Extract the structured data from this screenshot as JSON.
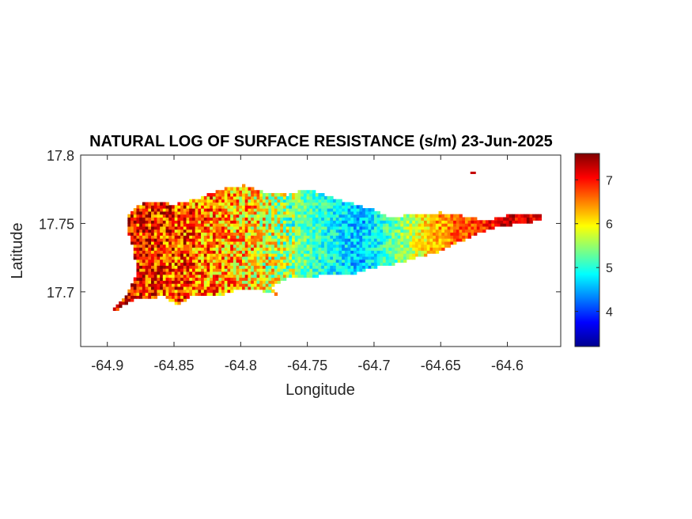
{
  "chart_data": {
    "type": "heatmap",
    "title": "NATURAL LOG OF SURFACE RESISTANCE (s/m) 23-Jun-2025",
    "xlabel": "Longitude",
    "ylabel": "Latitude",
    "xlim": [
      -64.92,
      -64.56
    ],
    "ylim": [
      17.66,
      17.8
    ],
    "xticks": [
      -64.9,
      -64.85,
      -64.8,
      -64.75,
      -64.7,
      -64.65,
      -64.6
    ],
    "xtick_labels": [
      "-64.9",
      "-64.85",
      "-64.8",
      "-64.75",
      "-64.7",
      "-64.65",
      "-64.6"
    ],
    "yticks": [
      17.7,
      17.75,
      17.8
    ],
    "ytick_labels": [
      "17.7",
      "17.75",
      "17.8"
    ],
    "colorbar": {
      "colormap": "jet",
      "clim": [
        3.2,
        7.6
      ],
      "ticks": [
        4,
        5,
        6,
        7
      ],
      "tick_labels": [
        "4",
        "5",
        "6",
        "7"
      ]
    },
    "island_outline": [
      [
        -64.9,
        17.68
      ],
      [
        -64.893,
        17.687
      ],
      [
        -64.882,
        17.694
      ],
      [
        -64.872,
        17.695
      ],
      [
        -64.858,
        17.697
      ],
      [
        -64.847,
        17.69
      ],
      [
        -64.838,
        17.697
      ],
      [
        -64.818,
        17.697
      ],
      [
        -64.8,
        17.702
      ],
      [
        -64.786,
        17.701
      ],
      [
        -64.772,
        17.698
      ],
      [
        -64.778,
        17.704
      ],
      [
        -64.77,
        17.708
      ],
      [
        -64.762,
        17.711
      ],
      [
        -64.748,
        17.71
      ],
      [
        -64.735,
        17.714
      ],
      [
        -64.718,
        17.712
      ],
      [
        -64.7,
        17.718
      ],
      [
        -64.682,
        17.721
      ],
      [
        -64.668,
        17.725
      ],
      [
        -64.65,
        17.73
      ],
      [
        -64.635,
        17.737
      ],
      [
        -64.62,
        17.744
      ],
      [
        -64.605,
        17.748
      ],
      [
        -64.59,
        17.75
      ],
      [
        -64.578,
        17.752
      ],
      [
        -64.57,
        17.755
      ],
      [
        -64.585,
        17.757
      ],
      [
        -64.6,
        17.756
      ],
      [
        -64.615,
        17.752
      ],
      [
        -64.63,
        17.755
      ],
      [
        -64.65,
        17.758
      ],
      [
        -64.67,
        17.757
      ],
      [
        -64.688,
        17.754
      ],
      [
        -64.7,
        17.76
      ],
      [
        -64.718,
        17.765
      ],
      [
        -64.735,
        17.77
      ],
      [
        -64.75,
        17.775
      ],
      [
        -64.765,
        17.771
      ],
      [
        -64.782,
        17.773
      ],
      [
        -64.797,
        17.778
      ],
      [
        -64.815,
        17.775
      ],
      [
        -64.832,
        17.768
      ],
      [
        -64.85,
        17.764
      ],
      [
        -64.868,
        17.766
      ],
      [
        -64.878,
        17.763
      ],
      [
        -64.885,
        17.756
      ],
      [
        -64.885,
        17.746
      ],
      [
        -64.88,
        17.73
      ],
      [
        -64.878,
        17.712
      ],
      [
        -64.886,
        17.697
      ],
      [
        -64.897,
        17.685
      ]
    ],
    "outlier_cells": [
      {
        "lon": -64.626,
        "lat": 17.787,
        "value": 7.3
      }
    ],
    "field_trend": {
      "description_points": [
        {
          "lon": -64.88,
          "value": 7.0
        },
        {
          "lon": -64.83,
          "value": 6.6
        },
        {
          "lon": -64.79,
          "value": 6.1
        },
        {
          "lon": -64.75,
          "value": 5.2
        },
        {
          "lon": -64.71,
          "value": 4.5
        },
        {
          "lon": -64.68,
          "value": 5.4
        },
        {
          "lon": -64.65,
          "value": 6.4
        },
        {
          "lon": -64.6,
          "value": 7.2
        }
      ]
    }
  }
}
